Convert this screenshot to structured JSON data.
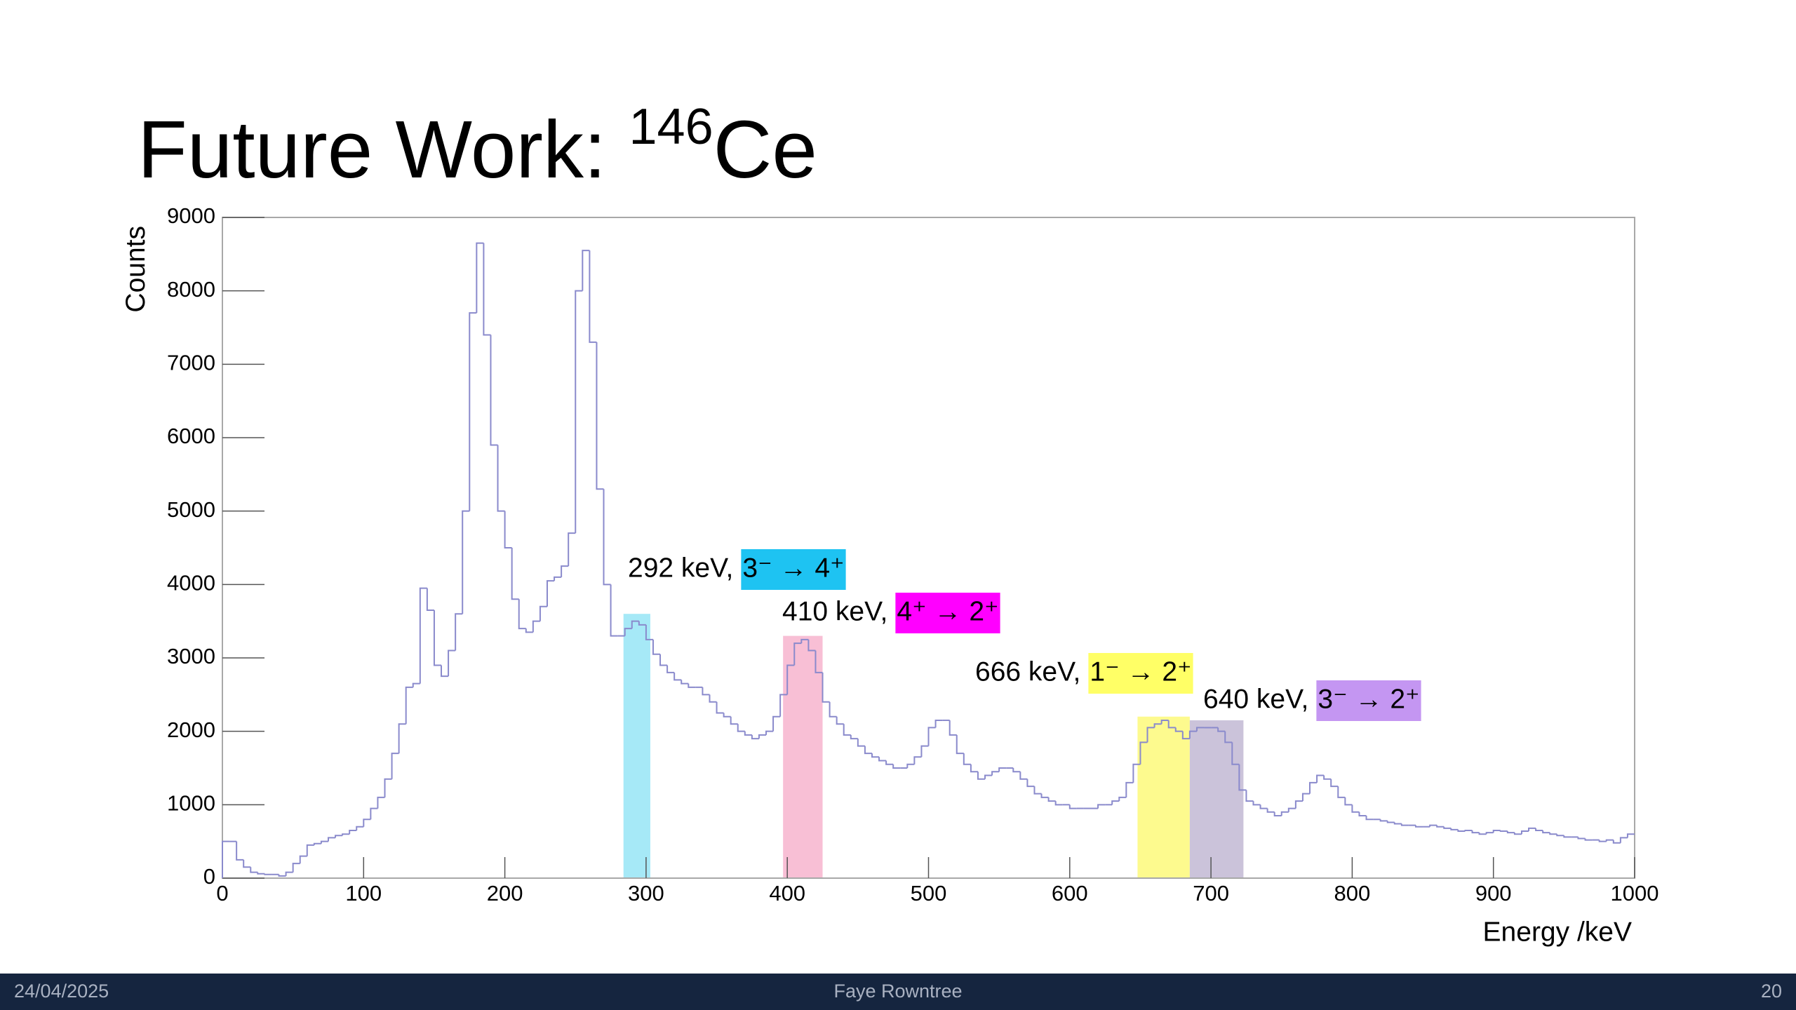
{
  "slide": {
    "title": "Future Work: ",
    "title_superscript": "146",
    "title_suffix": "Ce"
  },
  "footer": {
    "date": "24/04/2025",
    "author": "Faye Rowntree",
    "page": "20"
  },
  "chart_data": {
    "type": "histogram",
    "x_label": "Energy /keV",
    "y_label": "Counts",
    "color": "#8a8acc",
    "xlim": [
      0,
      1000
    ],
    "xticks": [
      0,
      100,
      200,
      300,
      400,
      500,
      600,
      700,
      800,
      900,
      1000
    ],
    "ylim": [
      0,
      9000
    ],
    "yticks": [
      0,
      1000,
      2000,
      3000,
      4000,
      5000,
      6000,
      7000,
      8000,
      9000
    ],
    "bins": [
      0,
      5,
      10,
      15,
      20,
      25,
      30,
      35,
      40,
      45,
      50,
      55,
      60,
      65,
      70,
      75,
      80,
      85,
      90,
      95,
      100,
      105,
      110,
      115,
      120,
      125,
      130,
      135,
      140,
      145,
      150,
      155,
      160,
      165,
      170,
      175,
      180,
      185,
      190,
      195,
      200,
      205,
      210,
      215,
      220,
      225,
      230,
      235,
      240,
      245,
      250,
      255,
      260,
      265,
      270,
      275,
      280,
      285,
      290,
      295,
      300,
      305,
      310,
      315,
      320,
      325,
      330,
      335,
      340,
      345,
      350,
      355,
      360,
      365,
      370,
      375,
      380,
      385,
      390,
      395,
      400,
      405,
      410,
      415,
      420,
      425,
      430,
      435,
      440,
      445,
      450,
      455,
      460,
      465,
      470,
      475,
      480,
      485,
      490,
      495,
      500,
      505,
      510,
      515,
      520,
      525,
      530,
      535,
      540,
      545,
      550,
      555,
      560,
      565,
      570,
      575,
      580,
      585,
      590,
      595,
      600,
      605,
      610,
      615,
      620,
      625,
      630,
      635,
      640,
      645,
      650,
      655,
      660,
      665,
      670,
      675,
      680,
      685,
      690,
      695,
      700,
      705,
      710,
      715,
      720,
      725,
      730,
      735,
      740,
      745,
      750,
      755,
      760,
      765,
      770,
      775,
      780,
      785,
      790,
      795,
      800,
      805,
      810,
      815,
      820,
      825,
      830,
      835,
      840,
      845,
      850,
      855,
      860,
      865,
      870,
      875,
      880,
      885,
      890,
      895,
      900,
      905,
      910,
      915,
      920,
      925,
      930,
      935,
      940,
      945,
      950,
      955,
      960,
      965,
      970,
      975,
      980,
      985,
      990,
      995,
      1000
    ],
    "values": [
      500,
      500,
      250,
      150,
      80,
      60,
      50,
      50,
      30,
      80,
      200,
      300,
      450,
      470,
      500,
      550,
      580,
      600,
      650,
      700,
      800,
      950,
      1100,
      1350,
      1700,
      2100,
      2600,
      2650,
      3950,
      3650,
      2900,
      2750,
      3100,
      3600,
      5000,
      7700,
      8650,
      7400,
      5900,
      5000,
      4500,
      3800,
      3400,
      3350,
      3500,
      3700,
      4050,
      4100,
      4250,
      4700,
      8000,
      8550,
      7300,
      5300,
      4000,
      3300,
      3300,
      3400,
      3500,
      3450,
      3250,
      3050,
      2900,
      2800,
      2700,
      2650,
      2600,
      2600,
      2500,
      2400,
      2250,
      2200,
      2100,
      2000,
      1950,
      1900,
      1950,
      2000,
      2200,
      2500,
      2900,
      3200,
      3250,
      3100,
      2800,
      2400,
      2200,
      2100,
      1950,
      1900,
      1800,
      1700,
      1650,
      1600,
      1550,
      1500,
      1500,
      1550,
      1650,
      1800,
      2050,
      2150,
      2150,
      1950,
      1700,
      1550,
      1450,
      1350,
      1400,
      1450,
      1500,
      1500,
      1450,
      1350,
      1250,
      1150,
      1100,
      1050,
      1000,
      1000,
      950,
      950,
      950,
      950,
      1000,
      1000,
      1050,
      1100,
      1300,
      1550,
      1850,
      2050,
      2100,
      2150,
      2050,
      2000,
      1900,
      2000,
      2050,
      2050,
      2050,
      2000,
      1850,
      1550,
      1200,
      1050,
      1000,
      950,
      900,
      850,
      900,
      950,
      1050,
      1150,
      1300,
      1400,
      1350,
      1250,
      1100,
      1000,
      900,
      850,
      800,
      800,
      780,
      760,
      740,
      720,
      720,
      700,
      700,
      720,
      700,
      680,
      660,
      640,
      650,
      620,
      600,
      620,
      650,
      640,
      620,
      600,
      640,
      680,
      650,
      620,
      600,
      580,
      560,
      560,
      540,
      520,
      520,
      500,
      520,
      480,
      550,
      600
    ],
    "annotations": [
      {
        "energy": "292 keV,",
        "transition": "3⁻ → 4⁺",
        "label_color": "#1ec3f2",
        "range": [
          284,
          303
        ],
        "top": 3600,
        "fill": "#a6e9f7"
      },
      {
        "energy": "410 keV,",
        "transition": "4⁺ → 2⁺",
        "label_color": "#ff00ff",
        "range": [
          397,
          425
        ],
        "top": 3300,
        "fill": "#f8bfd5"
      },
      {
        "energy": "666 keV,",
        "transition": "1⁻ → 2⁺",
        "label_color": "#ffff66",
        "range": [
          648,
          685
        ],
        "top": 2200,
        "fill": "#fdfa8e"
      },
      {
        "energy": "640 keV,",
        "transition": "3⁻ → 2⁺",
        "label_color": "#c496f2",
        "range": [
          685,
          723
        ],
        "top": 2150,
        "fill": "#cbc3da"
      }
    ]
  }
}
